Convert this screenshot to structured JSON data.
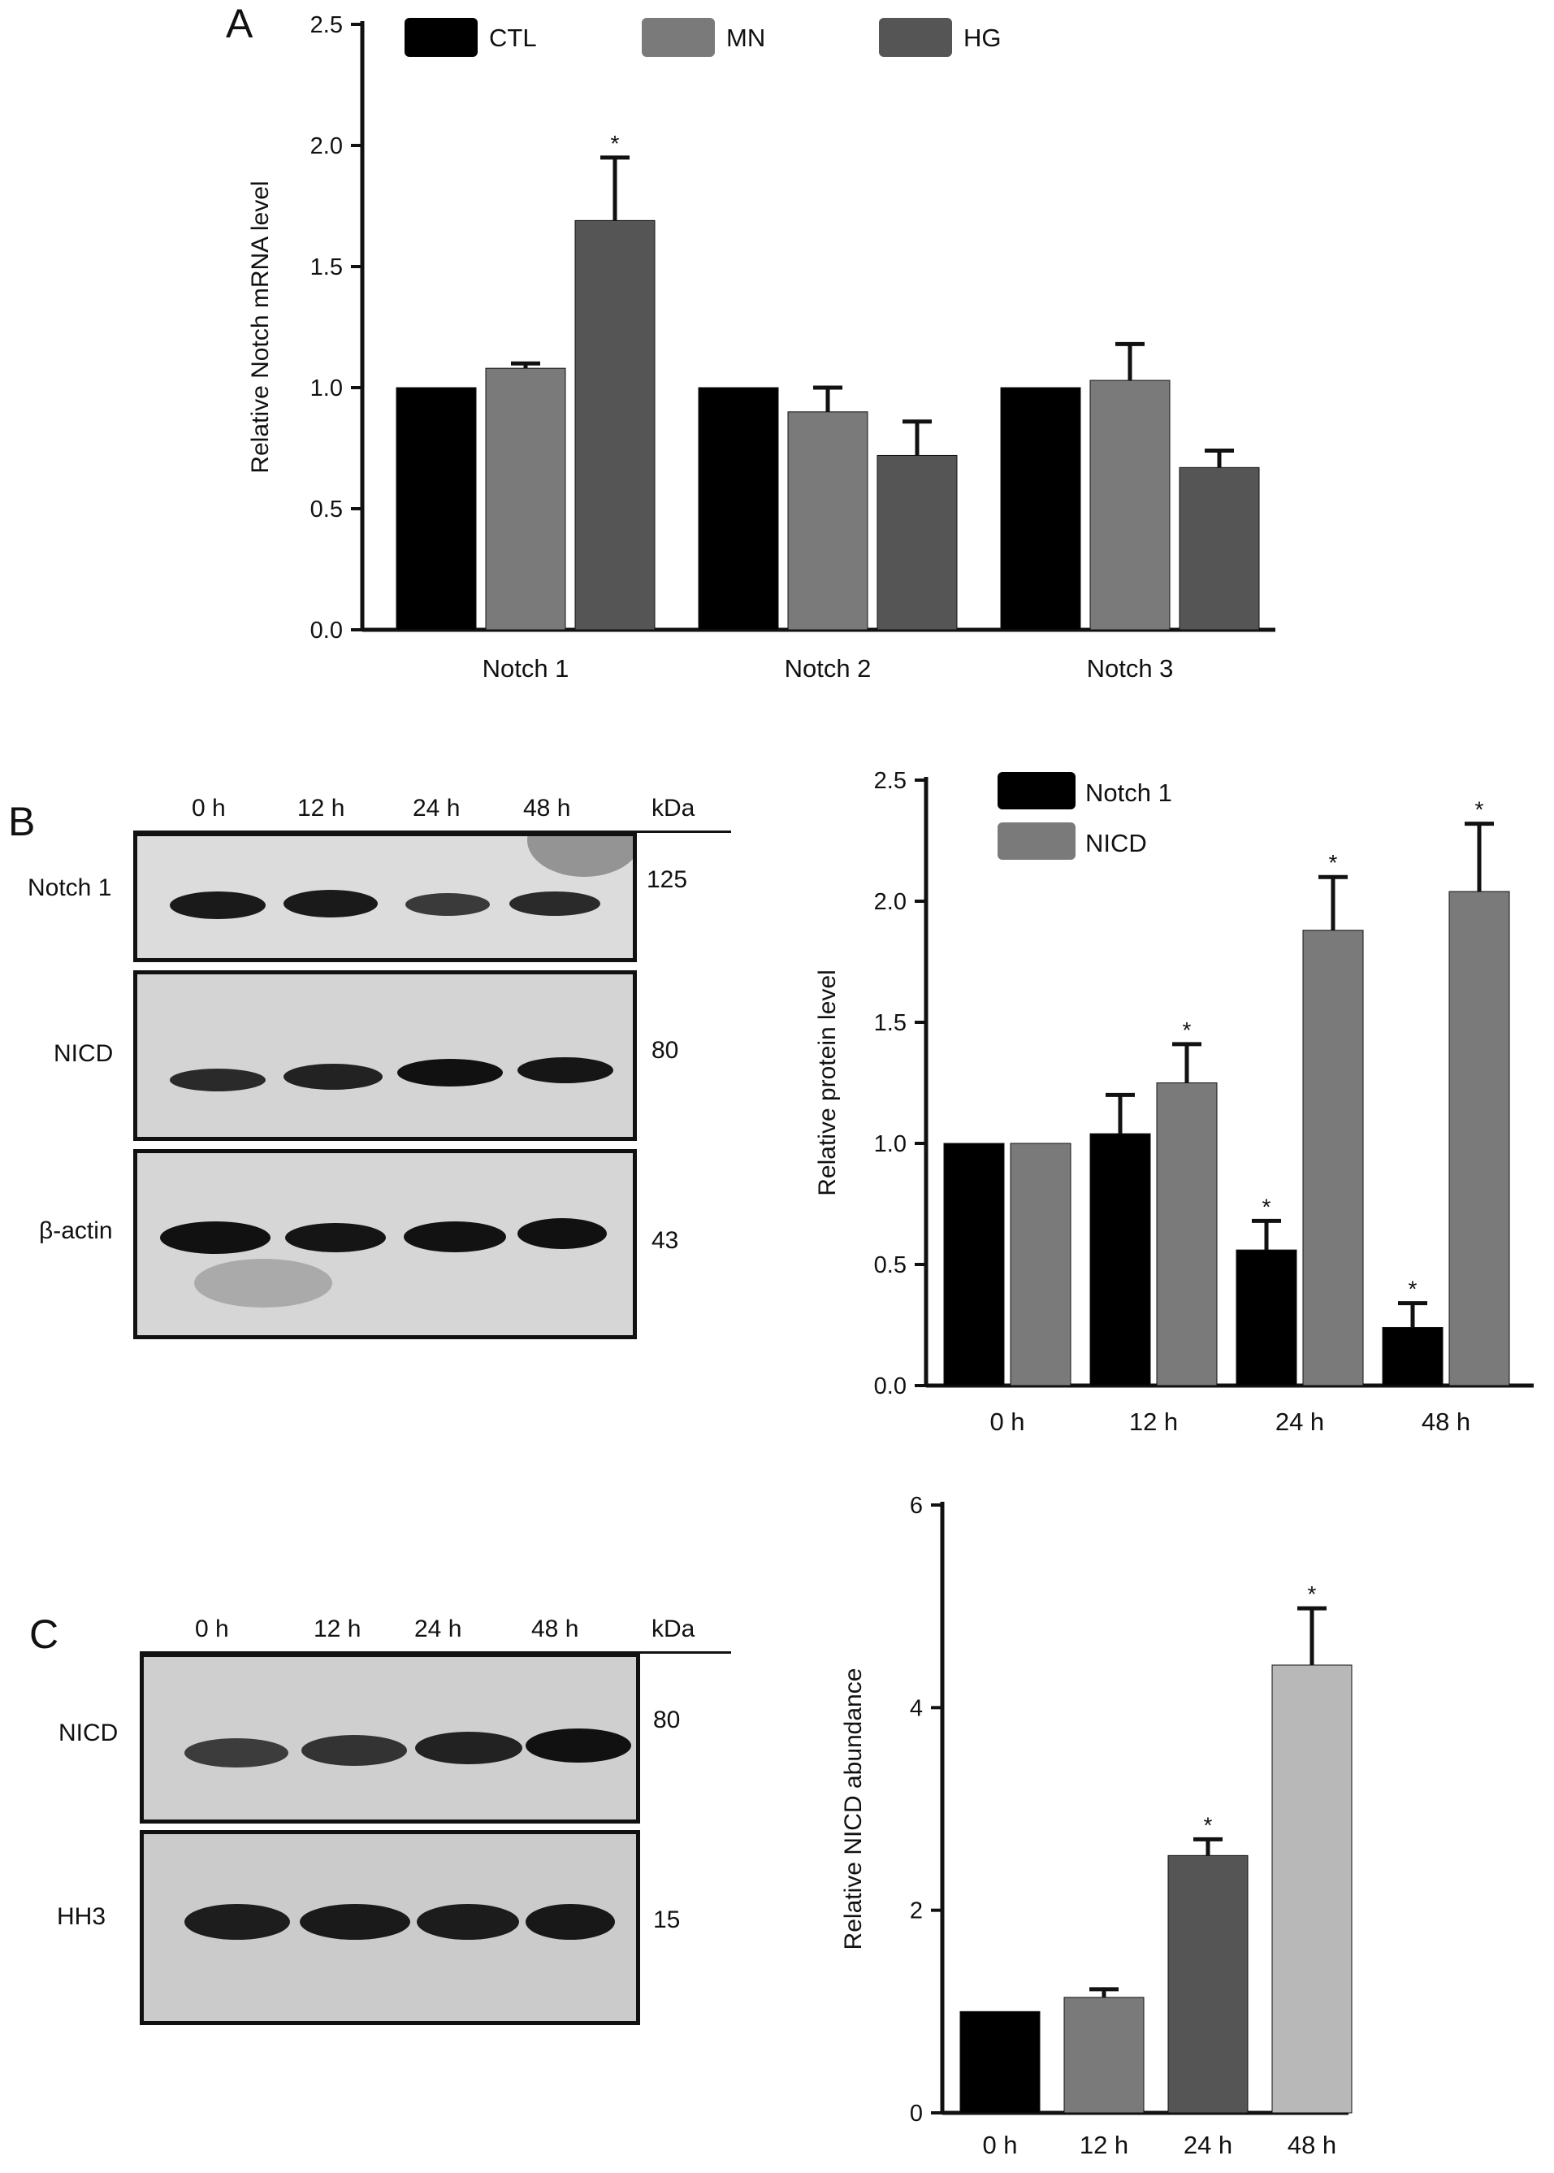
{
  "panels": {
    "a_label": "A",
    "b_label": "B",
    "c_label": "C"
  },
  "chart_data": [
    {
      "type": "bar",
      "panel": "A",
      "categories": [
        "Notch 1",
        "Notch 2",
        "Notch 3"
      ],
      "series": [
        {
          "name": "CTL",
          "color": "#000000",
          "values": [
            1.0,
            1.0,
            1.0
          ],
          "errors": [
            0,
            0,
            0
          ],
          "sig": [
            false,
            false,
            false
          ]
        },
        {
          "name": "MN",
          "color": "#7a7a7a",
          "values": [
            1.08,
            0.9,
            1.03
          ],
          "errors": [
            0.02,
            0.1,
            0.15
          ],
          "sig": [
            false,
            false,
            false
          ]
        },
        {
          "name": "HG",
          "color": "#555555",
          "values": [
            1.69,
            0.72,
            0.67
          ],
          "errors": [
            0.26,
            0.14,
            0.07
          ],
          "sig": [
            true,
            false,
            false
          ]
        }
      ],
      "ylabel": "Relative Notch mRNA level",
      "ylim": [
        0,
        2.5
      ],
      "yticks": [
        "0.0",
        "0.5",
        "1.0",
        "1.5",
        "2.0",
        "2.5"
      ],
      "legend_position": "top",
      "sig_marker": "*"
    },
    {
      "type": "bar",
      "panel": "B",
      "categories": [
        "0 h",
        "12 h",
        "24 h",
        "48 h"
      ],
      "series": [
        {
          "name": "Notch 1",
          "color": "#000000",
          "values": [
            1.0,
            1.04,
            0.56,
            0.24
          ],
          "errors": [
            0,
            0.16,
            0.12,
            0.1
          ],
          "sig": [
            false,
            false,
            true,
            true
          ]
        },
        {
          "name": "NICD",
          "color": "#7a7a7a",
          "values": [
            1.0,
            1.25,
            1.88,
            2.04
          ],
          "errors": [
            0,
            0.16,
            0.22,
            0.28
          ],
          "sig": [
            false,
            true,
            true,
            true
          ]
        }
      ],
      "ylabel": "Relative protein level",
      "ylim": [
        0,
        2.5
      ],
      "yticks": [
        "0.0",
        "0.5",
        "1.0",
        "1.5",
        "2.0",
        "2.5"
      ],
      "legend_position": "top-left",
      "sig_marker": "*"
    },
    {
      "type": "bar",
      "panel": "C",
      "categories": [
        "0 h",
        "12 h",
        "24 h",
        "48 h"
      ],
      "series": [
        {
          "name": "",
          "colors": [
            "#000000",
            "#7a7a7a",
            "#555555",
            "#b8b8b8"
          ],
          "values": [
            1.0,
            1.14,
            2.54,
            4.42
          ],
          "errors": [
            0,
            0.08,
            0.16,
            0.56
          ],
          "sig": [
            false,
            false,
            true,
            true
          ]
        }
      ],
      "ylabel": "Relative NICD abundance",
      "ylim": [
        0,
        6
      ],
      "yticks": [
        "0",
        "2",
        "4",
        "6"
      ],
      "sig_marker": "*"
    }
  ],
  "blot_b": {
    "lanes": [
      "0 h",
      "12 h",
      "24 h",
      "48 h"
    ],
    "kda_label": "kDa",
    "rows": [
      {
        "label": "Notch 1",
        "kda": "125"
      },
      {
        "label": "NICD",
        "kda": "80"
      },
      {
        "label": "β-actin",
        "kda": "43"
      }
    ]
  },
  "blot_c": {
    "lanes": [
      "0 h",
      "12 h",
      "24 h",
      "48 h"
    ],
    "kda_label": "kDa",
    "rows": [
      {
        "label": "NICD",
        "kda": "80"
      },
      {
        "label": "HH3",
        "kda": "15"
      }
    ]
  }
}
